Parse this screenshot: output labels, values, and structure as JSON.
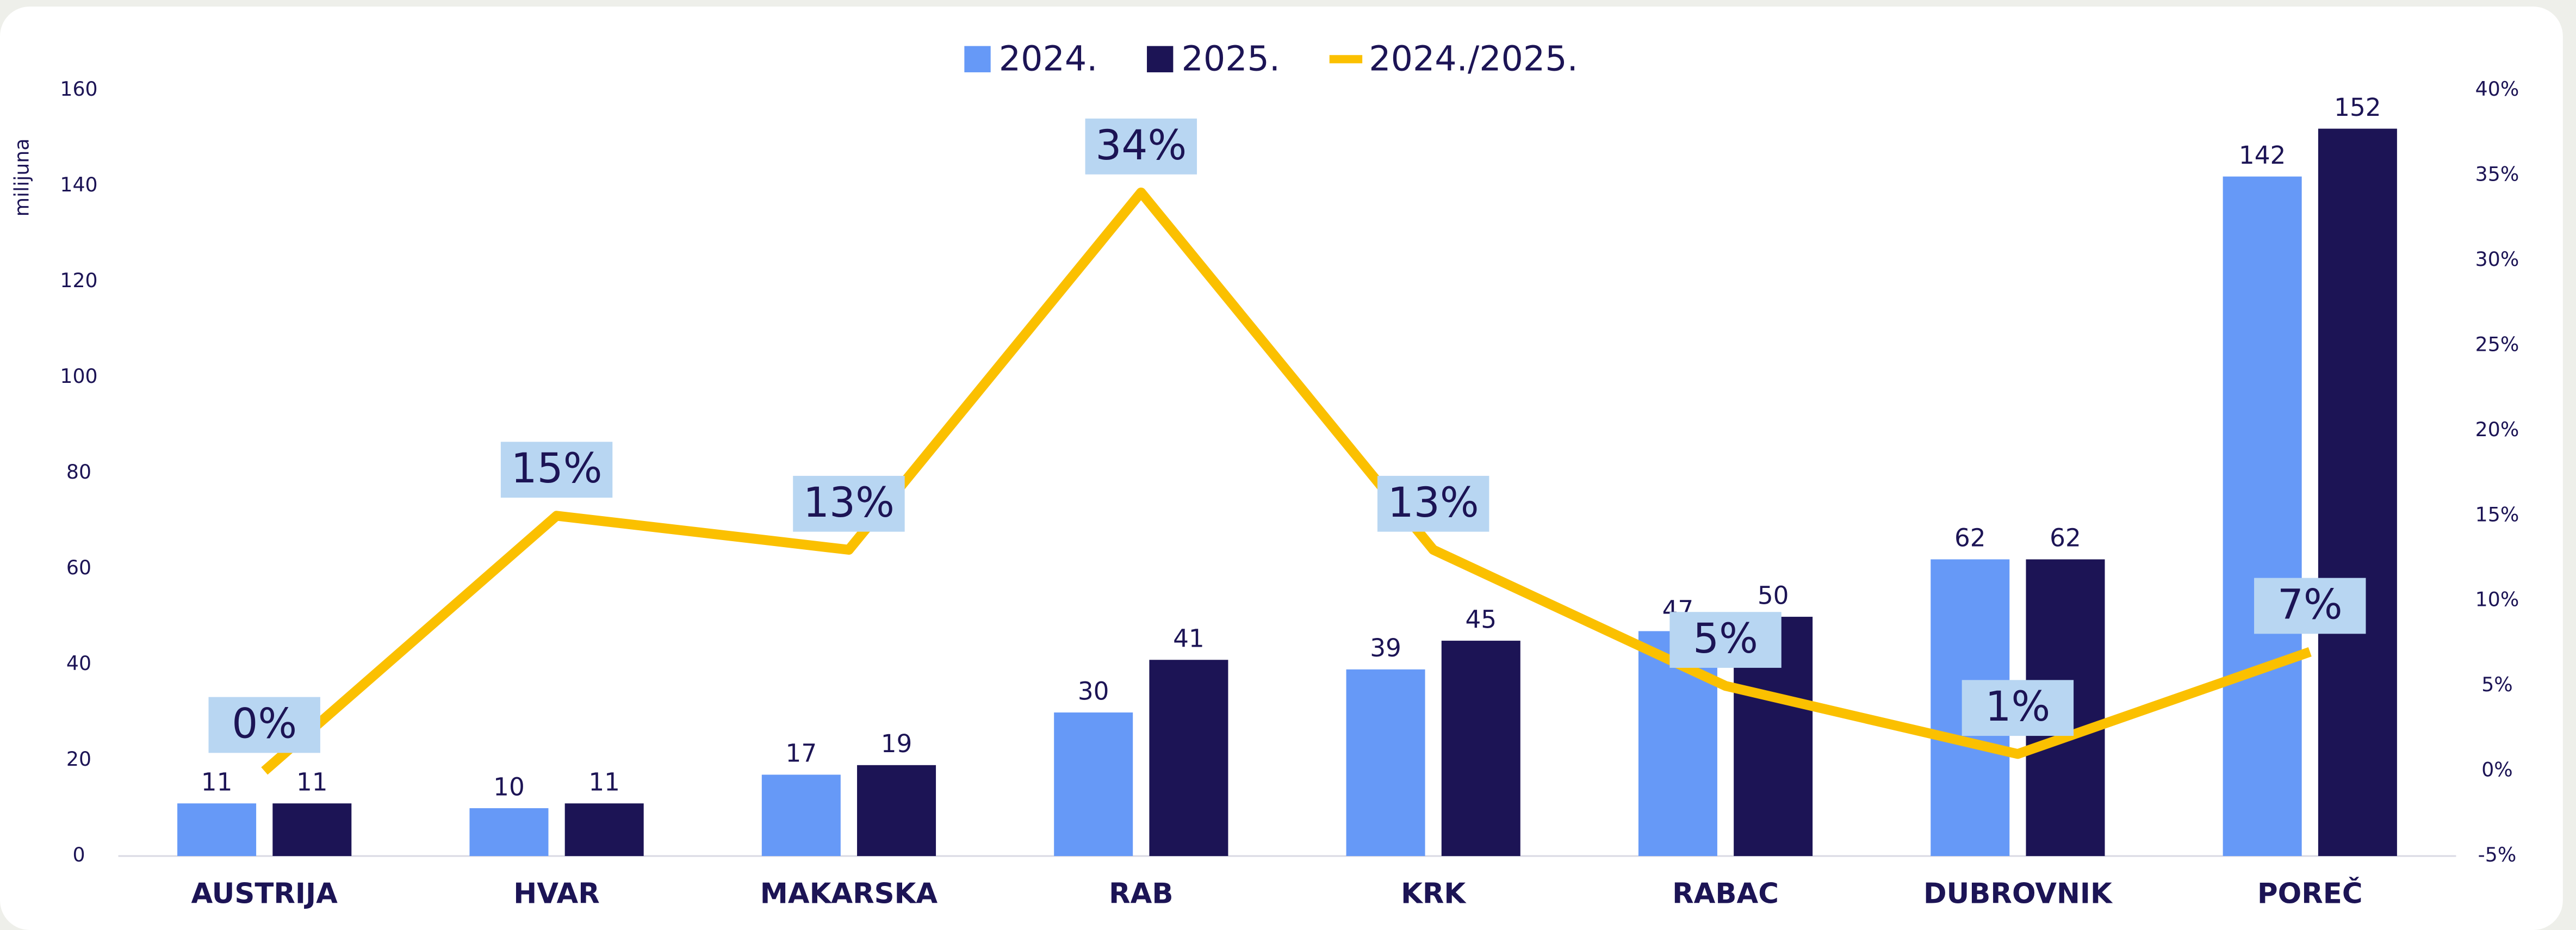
{
  "chart_data": {
    "type": "bar",
    "categories": [
      "AUSTRIJA",
      "HVAR",
      "MAKARSKA",
      "RAB",
      "KRK",
      "RABAC",
      "DUBROVNIK",
      "POREČ"
    ],
    "ylabel": "milijuna",
    "ylim": [
      0,
      160
    ],
    "yticks": [
      0,
      20,
      40,
      60,
      80,
      100,
      120,
      140,
      160
    ],
    "y2lim": [
      -5,
      40
    ],
    "y2ticks": [
      {
        "value": -5,
        "label": "-5%"
      },
      {
        "value": 0,
        "label": "0%"
      },
      {
        "value": 5,
        "label": "5%"
      },
      {
        "value": 10,
        "label": "10%"
      },
      {
        "value": 15,
        "label": "15%"
      },
      {
        "value": 20,
        "label": "20%"
      },
      {
        "value": 25,
        "label": "25%"
      },
      {
        "value": 30,
        "label": "30%"
      },
      {
        "value": 35,
        "label": "35%"
      },
      {
        "value": 40,
        "label": "40%"
      }
    ],
    "grid": false,
    "legend": "top",
    "series": [
      {
        "name": "2024.",
        "type": "bar",
        "color": "#6699f7",
        "values": [
          11,
          10,
          17,
          30,
          39,
          47,
          62,
          142
        ]
      },
      {
        "name": "2025.",
        "type": "bar",
        "color": "#1c1455",
        "values": [
          11,
          11,
          19,
          41,
          45,
          50,
          62,
          152
        ]
      },
      {
        "name": "2024./2025.",
        "type": "line",
        "axis": "y2",
        "color": "#fbc000",
        "values": [
          0,
          15,
          13,
          34,
          13,
          5,
          1,
          7
        ],
        "value_labels": [
          "0%",
          "15%",
          "13%",
          "34%",
          "13%",
          "5%",
          "1%",
          "7%"
        ]
      }
    ]
  }
}
